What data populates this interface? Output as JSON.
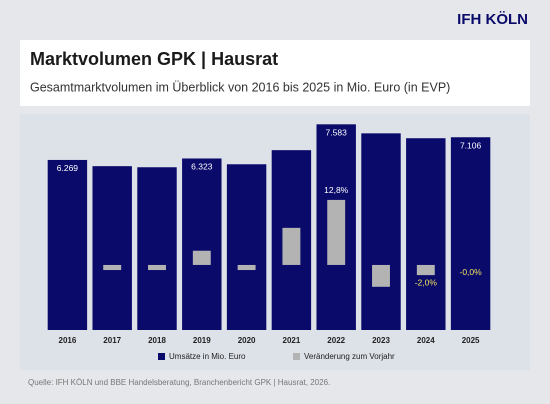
{
  "chart_data": {
    "type": "bar",
    "logo": "IFH KÖLN",
    "title": "Marktvolumen GPK | Hausrat",
    "subtitle": "Gesamtmarktvolumen im Überblick von 2016 bis 2025 in Mio. Euro (in EVP)",
    "source": "Quelle: IFH KÖLN und BBE Handelsberatung, Branchenbericht GPK | Hausrat, 2026.",
    "categories": [
      "2016",
      "2017",
      "2018",
      "2019",
      "2020",
      "2021",
      "2022",
      "2023",
      "2024",
      "2025"
    ],
    "series": [
      {
        "name": "Umsätze in Mio. Euro",
        "color": "#0a0a6b",
        "values": [
          6269,
          6040,
          6000,
          6323,
          6110,
          6630,
          7583,
          7250,
          7070,
          7106
        ],
        "value_labels": [
          "6.269",
          null,
          null,
          "6.323",
          null,
          null,
          "7.583",
          null,
          null,
          "7.106"
        ]
      },
      {
        "name": "Veränderung zum Vorjahr",
        "color": "#b3b3b3",
        "axis": "y2",
        "values": [
          null,
          -1.0,
          -1.0,
          2.8,
          -1.0,
          7.3,
          12.8,
          -4.3,
          -2.0,
          -0.0
        ],
        "value_labels": [
          null,
          null,
          null,
          null,
          null,
          null,
          "12,8%",
          null,
          "-2,0%",
          "-0,0%"
        ]
      }
    ],
    "ylim": [
      0,
      8000
    ],
    "y2lim": [
      -12.8,
      29.9
    ],
    "grid": false,
    "legend": "bottom"
  }
}
